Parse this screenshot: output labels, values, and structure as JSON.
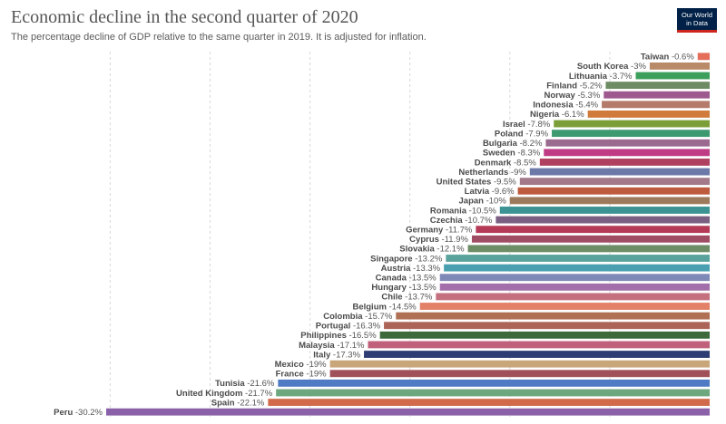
{
  "title": "Economic decline in the second quarter of 2020",
  "subtitle": "The percentage decline of GDP relative to the same quarter in 2019. It is adjusted for inflation.",
  "logo": {
    "line1": "Our World",
    "line2": "in Data"
  },
  "chart_data": {
    "type": "bar",
    "orientation": "horizontal",
    "title": "Economic decline in the second quarter of 2020",
    "subtitle": "The percentage decline of GDP relative to the same quarter in 2019. It is adjusted for inflation.",
    "xlim": [
      -30.2,
      0
    ],
    "grid": true,
    "categories": [
      "Taiwan",
      "South Korea",
      "Lithuania",
      "Finland",
      "Norway",
      "Indonesia",
      "Nigeria",
      "Israel",
      "Poland",
      "Bulgaria",
      "Sweden",
      "Denmark",
      "Netherlands",
      "United States",
      "Latvia",
      "Japan",
      "Romania",
      "Czechia",
      "Germany",
      "Cyprus",
      "Slovakia",
      "Singapore",
      "Austria",
      "Canada",
      "Hungary",
      "Chile",
      "Belgium",
      "Colombia",
      "Portugal",
      "Philippines",
      "Malaysia",
      "Italy",
      "Mexico",
      "France",
      "Tunisia",
      "United Kingdom",
      "Spain",
      "Peru"
    ],
    "values": [
      -0.6,
      -3,
      -3.7,
      -5.2,
      -5.3,
      -5.4,
      -6.1,
      -7.8,
      -7.9,
      -8.2,
      -8.3,
      -8.5,
      -9,
      -9.5,
      -9.6,
      -10,
      -10.5,
      -10.7,
      -11.7,
      -11.9,
      -12.1,
      -13.2,
      -13.3,
      -13.5,
      -13.5,
      -13.7,
      -14.5,
      -15.7,
      -16.3,
      -16.5,
      -17.1,
      -17.3,
      -19,
      -19,
      -21.6,
      -21.7,
      -22.1,
      -30.2
    ],
    "value_labels": [
      "-0.6%",
      "-3%",
      "-3.7%",
      "-5.2%",
      "-5.3%",
      "-5.4%",
      "-6.1%",
      "-7.8%",
      "-7.9%",
      "-8.2%",
      "-8.3%",
      "-8.5%",
      "-9%",
      "-9.5%",
      "-9.6%",
      "-10%",
      "-10.5%",
      "-10.7%",
      "-11.7%",
      "-11.9%",
      "-12.1%",
      "-13.2%",
      "-13.3%",
      "-13.5%",
      "-13.5%",
      "-13.7%",
      "-14.5%",
      "-15.7%",
      "-16.3%",
      "-16.5%",
      "-17.1%",
      "-17.3%",
      "-19%",
      "-19%",
      "-21.6%",
      "-21.7%",
      "-22.1%",
      "-30.2%"
    ],
    "colors": [
      "#e56e5a",
      "#b88a67",
      "#3c9f5b",
      "#6d8c63",
      "#9e5a8e",
      "#b47a6a",
      "#d07a3b",
      "#7b9e39",
      "#3d9970",
      "#9a6b8f",
      "#bf3c85",
      "#b04060",
      "#6c78a8",
      "#a37888",
      "#be5b3f",
      "#9e7a5c",
      "#3b9393",
      "#7a5f82",
      "#b53a57",
      "#a04d64",
      "#6c8d65",
      "#5aa39c",
      "#4aa0b0",
      "#7f89b8",
      "#a36faa",
      "#c4707e",
      "#e28068",
      "#b07054",
      "#ac6358",
      "#3c6a3b",
      "#c0607a",
      "#2d3c72",
      "#c9a57a",
      "#a05058",
      "#4f7bc4",
      "#6ca77e",
      "#d06a4a",
      "#8a60a8"
    ]
  }
}
